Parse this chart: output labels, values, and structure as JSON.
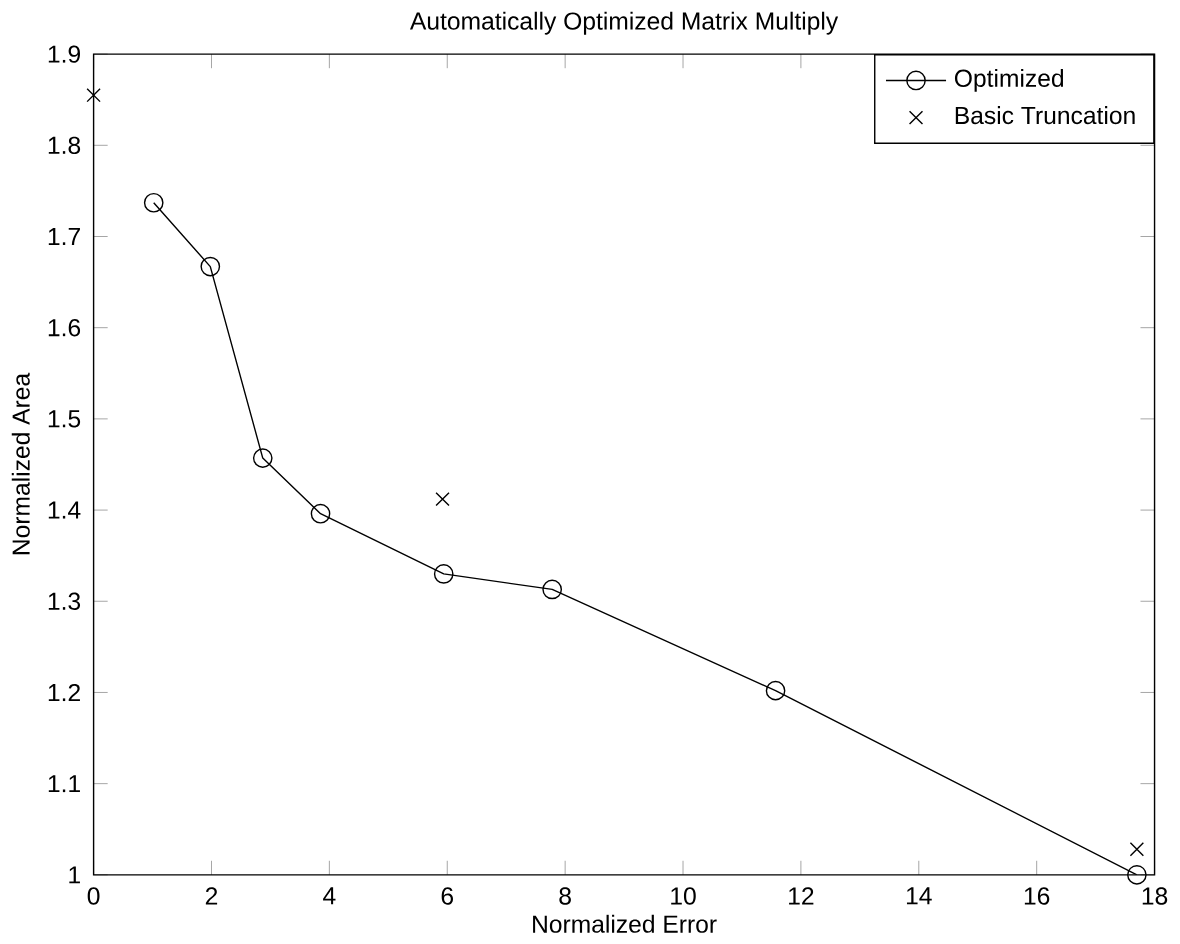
{
  "chart_data": {
    "type": "line",
    "title": "Automatically Optimized Matrix Multiply",
    "xlabel": "Normalized Error",
    "ylabel": "Normalized Area",
    "xlim": [
      0,
      18
    ],
    "xticks": [
      0,
      2,
      4,
      6,
      8,
      10,
      12,
      14,
      16,
      18
    ],
    "ylim": [
      1,
      1.9
    ],
    "yticks": [
      1,
      1.1,
      1.2,
      1.3,
      1.4,
      1.5,
      1.6,
      1.7,
      1.8,
      1.9
    ],
    "grid": false,
    "legend": "top right",
    "series": [
      {
        "name": "Optimized",
        "marker": "circle",
        "color": "#000000",
        "x": [
          1.02,
          1.98,
          2.87,
          3.85,
          5.94,
          7.78,
          11.57,
          17.7
        ],
        "values": [
          1.737,
          1.667,
          1.457,
          1.396,
          1.33,
          1.313,
          1.202,
          1.0
        ]
      },
      {
        "name": "Basic Truncation",
        "type": "scatter",
        "marker": "cross",
        "color": "#000000",
        "x": [
          0,
          5.92,
          17.7
        ],
        "values": [
          1.855,
          1.412,
          1.028
        ]
      }
    ]
  }
}
